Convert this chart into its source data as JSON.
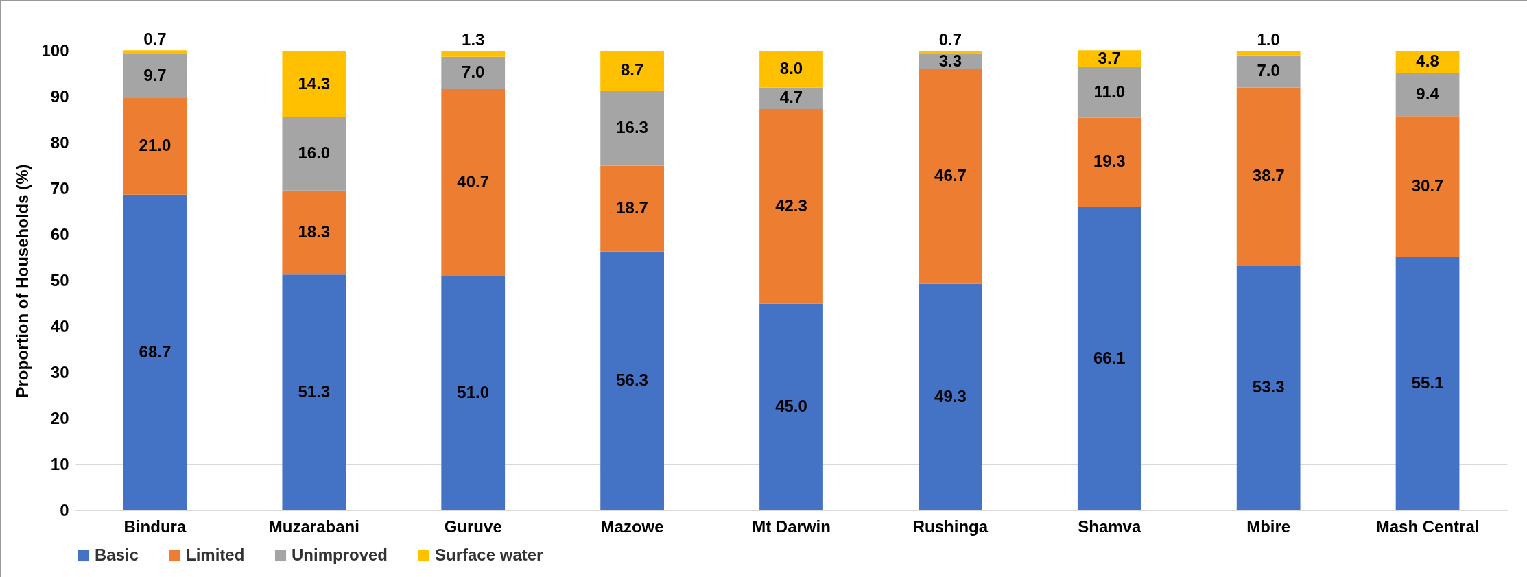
{
  "chart_data": {
    "type": "bar",
    "stacked": true,
    "ylabel": "Proportion of Households (%)",
    "categories": [
      "Bindura",
      "Muzarabani",
      "Guruve",
      "Mazowe",
      "Mt Darwin",
      "Rushinga",
      "Shamva",
      "Mbire",
      "Mash Central"
    ],
    "series": [
      {
        "name": "Basic",
        "color": "#4472c4",
        "values": [
          68.7,
          51.3,
          51.0,
          56.3,
          45.0,
          49.3,
          66.1,
          53.3,
          55.1
        ],
        "value_labels": [
          "68.7",
          "51.3",
          "51.0",
          "56.3",
          "45.0",
          "49.3",
          "66.1",
          "53.3",
          "55.1"
        ]
      },
      {
        "name": "Limited",
        "color": "#ed7d31",
        "values": [
          21.0,
          18.3,
          40.7,
          18.7,
          42.3,
          46.7,
          19.3,
          38.7,
          30.7
        ],
        "value_labels": [
          "21.0",
          "18.3",
          "40.7",
          "18.7",
          "42.3",
          "46.7",
          "19.3",
          "38.7",
          "30.7"
        ]
      },
      {
        "name": "Unimproved",
        "color": "#a5a5a5",
        "values": [
          9.7,
          16.0,
          7.0,
          16.3,
          4.7,
          3.3,
          11.0,
          7.0,
          9.4
        ],
        "value_labels": [
          "9.7",
          "16.0",
          "7.0",
          "16.3",
          "4.7",
          "3.3",
          "11.0",
          "7.0",
          "9.4"
        ]
      },
      {
        "name": "Surface water",
        "color": "#ffc000",
        "values": [
          0.7,
          14.3,
          1.3,
          8.7,
          8.0,
          0.7,
          3.7,
          1.0,
          4.8
        ],
        "value_labels": [
          "0.7",
          "14.3",
          "1.3",
          "8.7",
          "8.0",
          "0.7",
          "3.7",
          "1.0",
          "4.8"
        ]
      }
    ],
    "ylim": [
      0,
      100
    ],
    "yticks": [
      0,
      10,
      20,
      30,
      40,
      50,
      60,
      70,
      80,
      90,
      100
    ],
    "grid": "y",
    "legend": "bottom"
  }
}
